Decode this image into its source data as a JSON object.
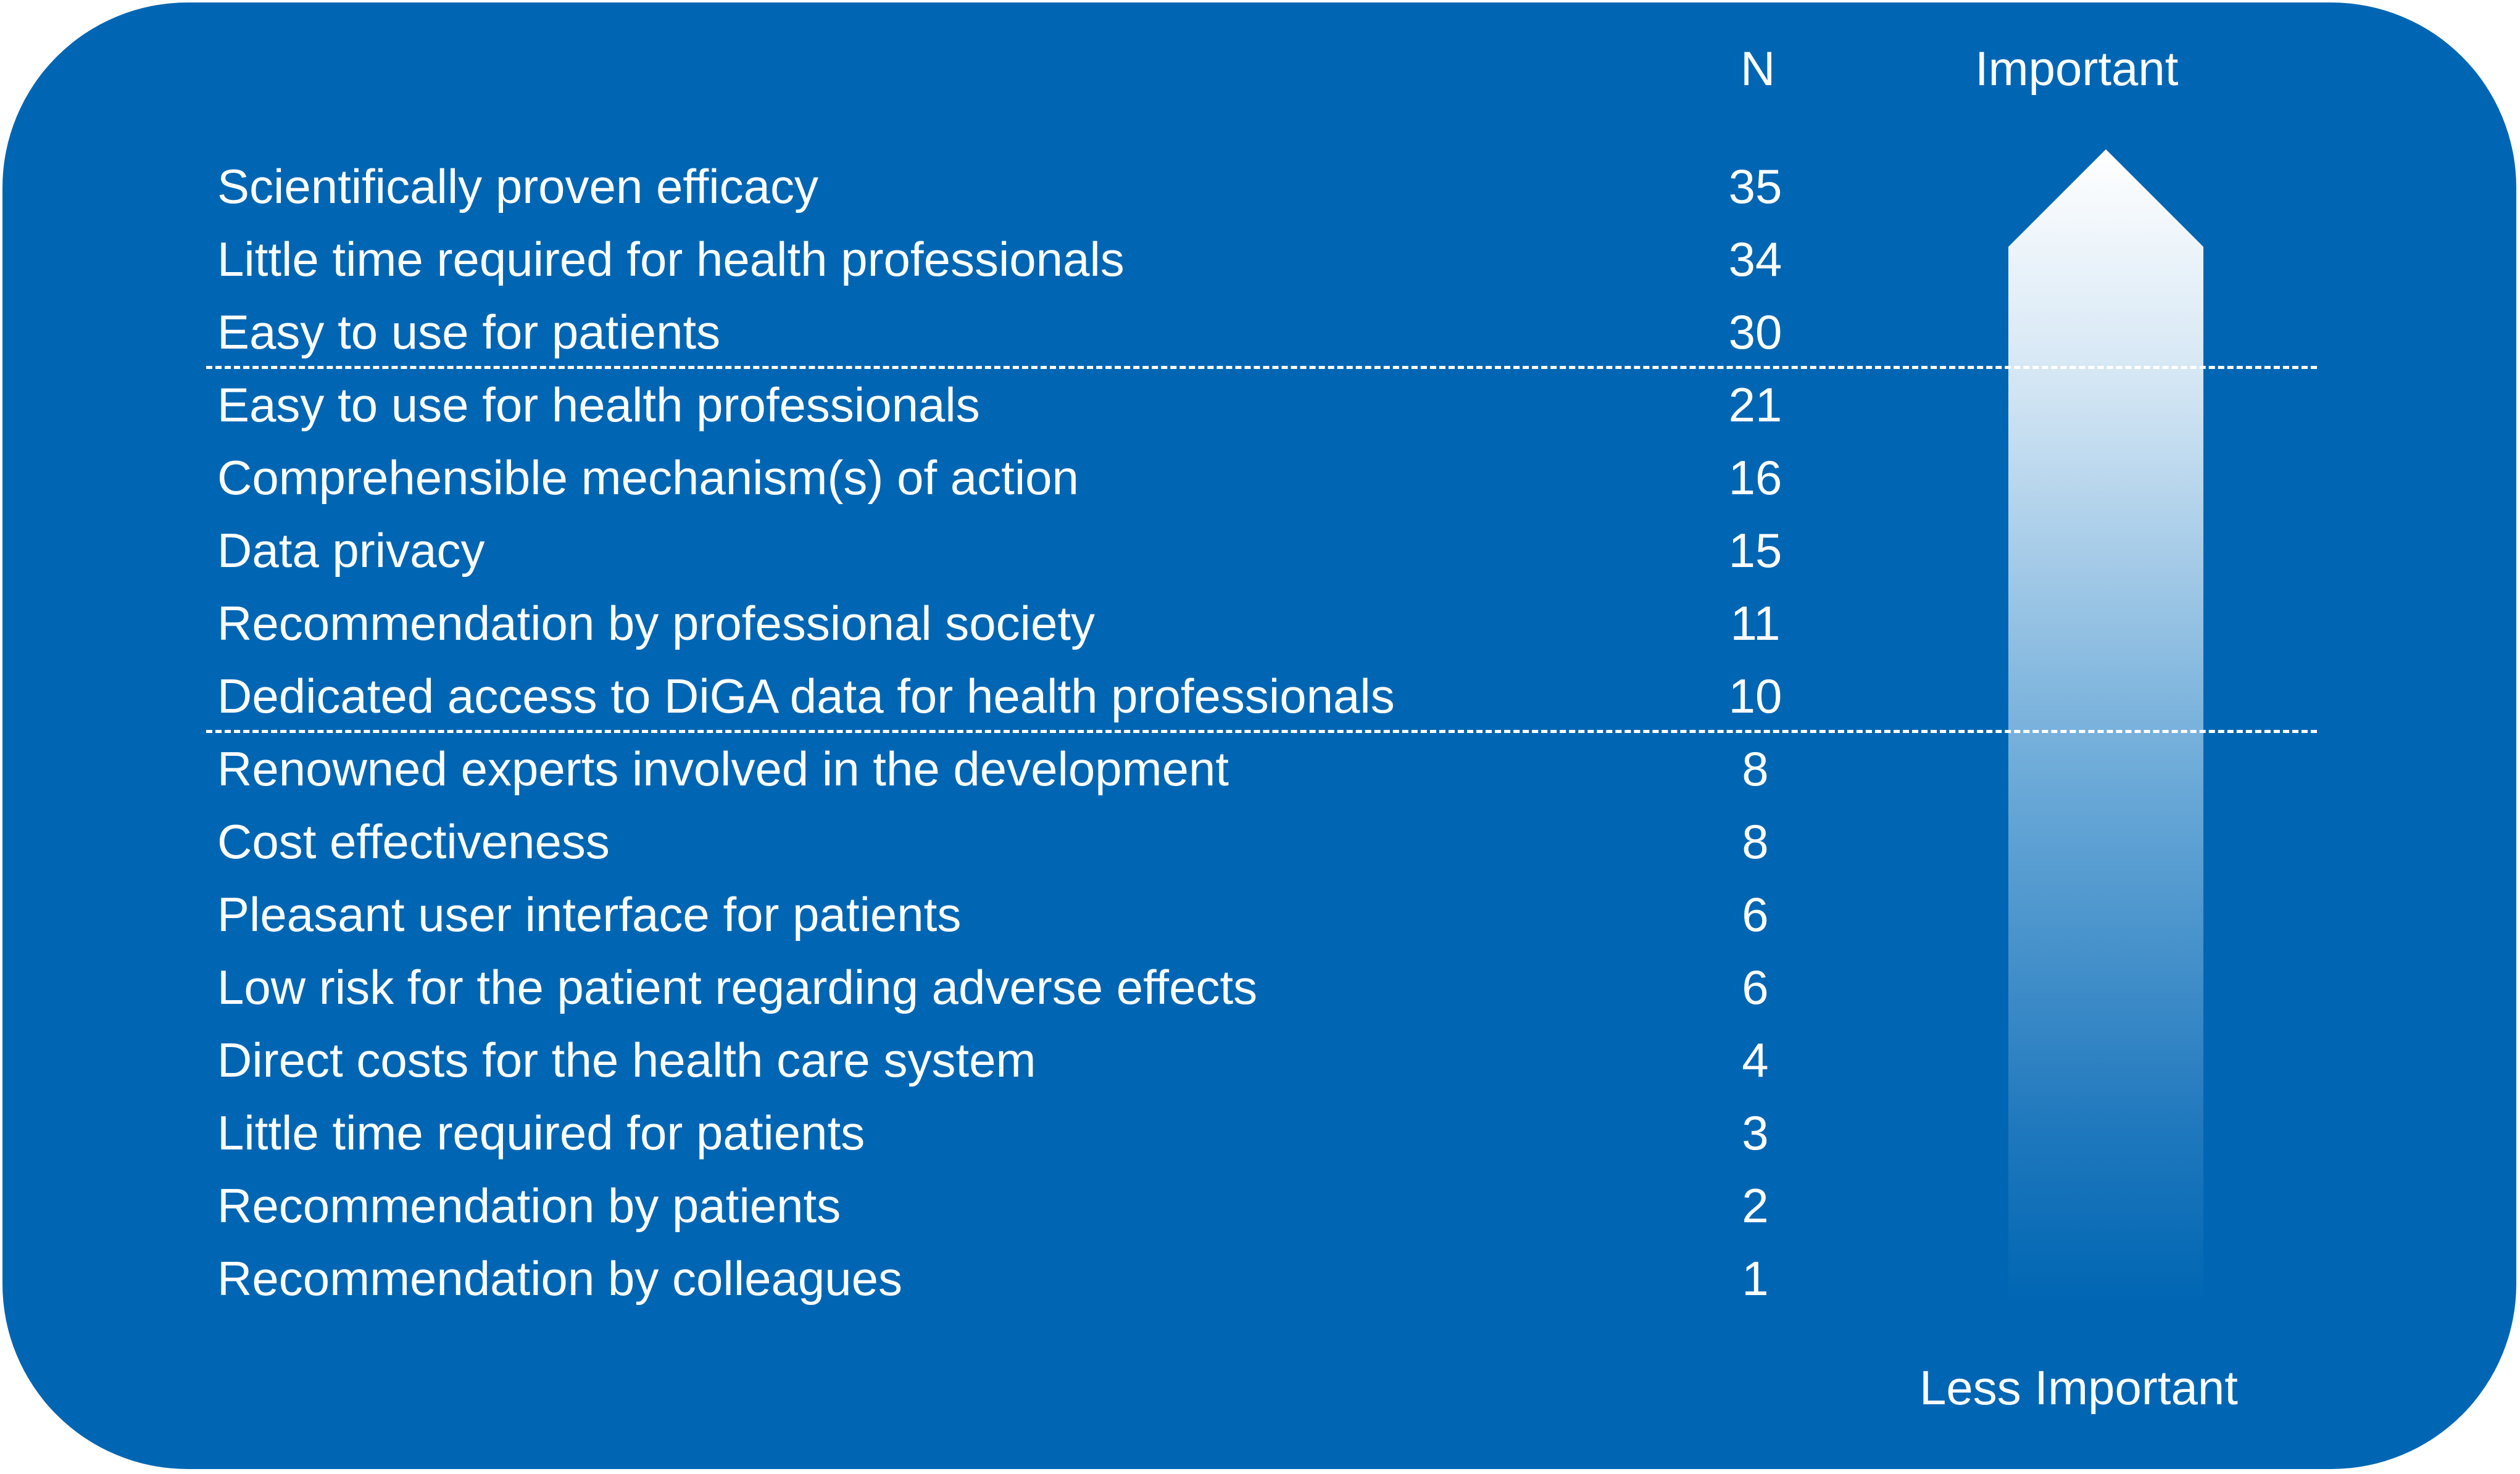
{
  "header": {
    "n_label": "N",
    "important_label": "Important",
    "less_important_label": "Less Important"
  },
  "colors": {
    "background": "#0066b3",
    "text": "#ffffff",
    "arrow_top": "#ffffff",
    "arrow_bottom": "#0066b3"
  },
  "rows": [
    {
      "label": "Scientifically proven efficacy",
      "n": "35"
    },
    {
      "label": "Little time required for health professionals",
      "n": "34"
    },
    {
      "label": "Easy to use for patients",
      "n": "30"
    },
    {
      "label": "Easy to use for health professionals",
      "n": "21"
    },
    {
      "label": "Comprehensible mechanism(s) of action",
      "n": "16"
    },
    {
      "label": "Data privacy",
      "n": "15"
    },
    {
      "label": "Recommendation by professional society",
      "n": "11"
    },
    {
      "label": "Dedicated access to DiGA data for health professionals",
      "n": "10"
    },
    {
      "label": "Renowned experts involved in the development",
      "n": "8"
    },
    {
      "label": "Cost effectiveness",
      "n": "8"
    },
    {
      "label": "Pleasant user interface for patients",
      "n": "6"
    },
    {
      "label": "Low risk for the patient regarding adverse effects",
      "n": "6"
    },
    {
      "label": "Direct costs for the health care system",
      "n": "4"
    },
    {
      "label": "Little time required for patients",
      "n": "3"
    },
    {
      "label": "Recommendation by patients",
      "n": "2"
    },
    {
      "label": "Recommendation by colleagues",
      "n": "1"
    }
  ]
}
